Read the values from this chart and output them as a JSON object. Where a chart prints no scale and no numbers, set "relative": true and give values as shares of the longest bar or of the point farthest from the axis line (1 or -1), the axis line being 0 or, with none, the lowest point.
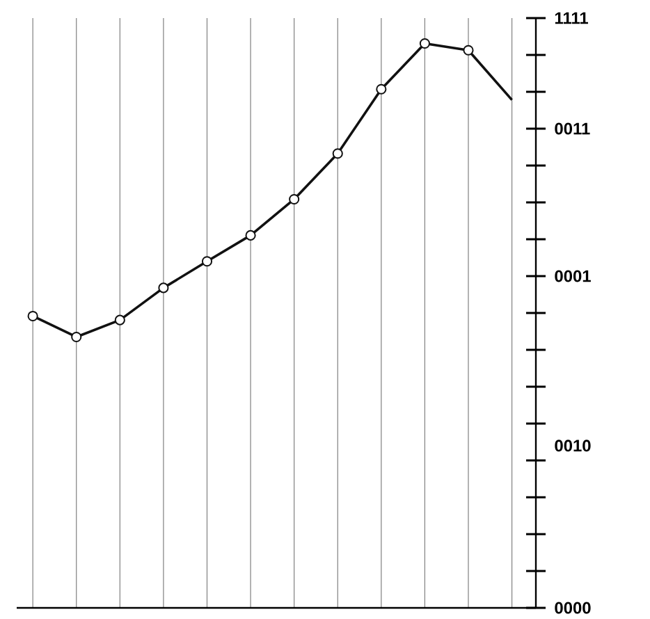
{
  "chart_data": {
    "type": "line",
    "relative": true,
    "categories": [
      null,
      null,
      null,
      null,
      null,
      null,
      null,
      null,
      null,
      null,
      null,
      null
    ],
    "series": [
      {
        "color": "#111111",
        "values": [
          0.517,
          0.48,
          0.51,
          0.567,
          0.614,
          0.66,
          0.724,
          0.805,
          0.919,
          1,
          0.988,
          0.9
        ]
      }
    ],
    "marker": "circle",
    "grid": "x",
    "annotations": [
      "1111",
      "0011",
      "0001",
      "0010",
      "0000"
    ]
  }
}
